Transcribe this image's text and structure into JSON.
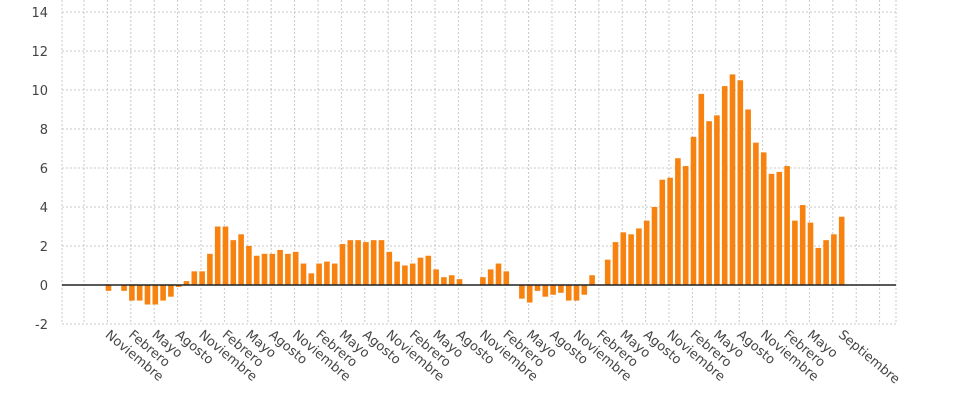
{
  "chart_data": {
    "type": "bar",
    "color": "#f7820f",
    "ylim": [
      -2,
      14
    ],
    "yticks": [
      -2,
      0,
      2,
      4,
      6,
      8,
      10,
      12,
      14
    ],
    "grid": true,
    "values": [
      -0.3,
      0.0,
      -0.3,
      -0.8,
      -0.8,
      -1.0,
      -1.0,
      -0.8,
      -0.6,
      -0.1,
      0.2,
      0.7,
      0.7,
      1.6,
      3.0,
      3.0,
      2.3,
      2.6,
      2.0,
      1.5,
      1.6,
      1.6,
      1.8,
      1.6,
      1.7,
      1.1,
      0.6,
      1.1,
      1.2,
      1.1,
      2.1,
      2.3,
      2.3,
      2.2,
      2.3,
      2.3,
      1.7,
      1.2,
      1.0,
      1.1,
      1.4,
      1.5,
      0.8,
      0.4,
      0.5,
      0.3,
      0.0,
      0.0,
      0.4,
      0.8,
      1.1,
      0.7,
      0.0,
      -0.7,
      -0.9,
      -0.3,
      -0.6,
      -0.5,
      -0.4,
      -0.8,
      -0.8,
      -0.5,
      0.5,
      0.0,
      1.3,
      2.2,
      2.7,
      2.6,
      2.9,
      3.3,
      4.0,
      5.4,
      5.5,
      6.5,
      6.1,
      7.6,
      9.8,
      8.4,
      8.7,
      10.2,
      10.8,
      10.5,
      9.0,
      7.3,
      6.8,
      5.7,
      5.8,
      6.1,
      3.3,
      4.1,
      3.2,
      1.9,
      2.3,
      2.6,
      3.5
    ],
    "xtick_labels": [
      {
        "index": 0,
        "label": "Noviembre"
      },
      {
        "index": 3,
        "label": "Febrero"
      },
      {
        "index": 6,
        "label": "Mayo"
      },
      {
        "index": 9,
        "label": "Agosto"
      },
      {
        "index": 12,
        "label": "Noviembre"
      },
      {
        "index": 15,
        "label": "Febrero"
      },
      {
        "index": 18,
        "label": "Mayo"
      },
      {
        "index": 21,
        "label": "Agosto"
      },
      {
        "index": 24,
        "label": "Noviembre"
      },
      {
        "index": 27,
        "label": "Febrero"
      },
      {
        "index": 30,
        "label": "Mayo"
      },
      {
        "index": 33,
        "label": "Agosto"
      },
      {
        "index": 36,
        "label": "Noviembre"
      },
      {
        "index": 39,
        "label": "Febrero"
      },
      {
        "index": 42,
        "label": "Mayo"
      },
      {
        "index": 45,
        "label": "Agosto"
      },
      {
        "index": 48,
        "label": "Noviembre"
      },
      {
        "index": 51,
        "label": "Febrero"
      },
      {
        "index": 54,
        "label": "Mayo"
      },
      {
        "index": 57,
        "label": "Agosto"
      },
      {
        "index": 60,
        "label": "Noviembre"
      },
      {
        "index": 63,
        "label": "Febrero"
      },
      {
        "index": 66,
        "label": "Mayo"
      },
      {
        "index": 69,
        "label": "Agosto"
      },
      {
        "index": 72,
        "label": "Noviembre"
      },
      {
        "index": 75,
        "label": "Febrero"
      },
      {
        "index": 78,
        "label": "Mayo"
      },
      {
        "index": 81,
        "label": "Agosto"
      },
      {
        "index": 84,
        "label": "Noviembre"
      },
      {
        "index": 87,
        "label": "Febrero"
      },
      {
        "index": 90,
        "label": "Mayo"
      },
      {
        "index": 94,
        "label": "Septiembre"
      }
    ]
  }
}
